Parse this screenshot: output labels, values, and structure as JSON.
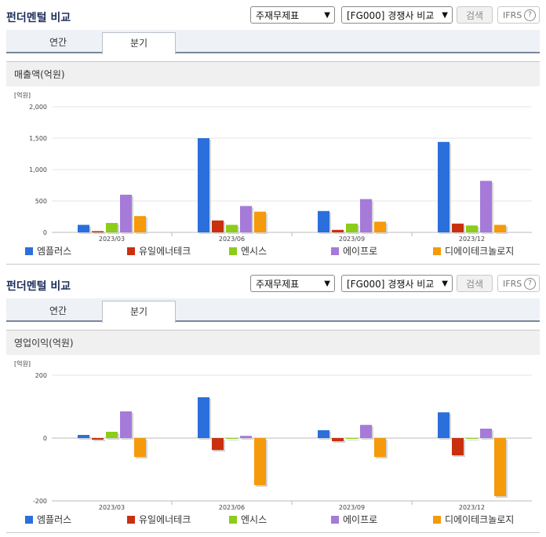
{
  "panels": [
    {
      "title": "펀더멘털 비교",
      "select_statement": "주재무제표",
      "select_compare": "[FG000] 경쟁사 비교",
      "search_label": "검색",
      "ifrs_label": "IFRS",
      "ifrs_help": "?",
      "tabs": [
        "연간",
        "분기"
      ],
      "section_title": "매출액(억원)"
    },
    {
      "title": "펀더멘털 비교",
      "select_statement": "주재무제표",
      "select_compare": "[FG000] 경쟁사 비교",
      "search_label": "검색",
      "ifrs_label": "IFRS",
      "ifrs_help": "?",
      "tabs": [
        "연간",
        "분기"
      ],
      "section_title": "영업이익(억원)"
    }
  ],
  "colors": {
    "엠플러스": "#2a6fdb",
    "유일에너테크": "#c9300f",
    "엔시스": "#8ccc1a",
    "에이프로": "#a57ad8",
    "디에이테크놀로지": "#f59a0a"
  },
  "chart_data": [
    {
      "type": "bar",
      "unit_label": "[억원]",
      "categories": [
        "2023/03",
        "2023/06",
        "2023/09",
        "2023/12"
      ],
      "yticks": [
        "0",
        "500",
        "1,000",
        "1,500",
        "2,000"
      ],
      "ylim": [
        0,
        2000
      ],
      "series": [
        {
          "name": "엠플러스",
          "values": [
            120,
            1500,
            340,
            1440
          ]
        },
        {
          "name": "유일에너테크",
          "values": [
            20,
            190,
            40,
            140
          ]
        },
        {
          "name": "엔시스",
          "values": [
            150,
            120,
            140,
            110
          ]
        },
        {
          "name": "에이프로",
          "values": [
            600,
            420,
            530,
            820
          ]
        },
        {
          "name": "디에이테크놀로지",
          "values": [
            260,
            330,
            170,
            120
          ]
        }
      ]
    },
    {
      "type": "bar",
      "unit_label": "[억원]",
      "categories": [
        "2023/03",
        "2023/06",
        "2023/09",
        "2023/12"
      ],
      "yticks": [
        "-200",
        "0",
        "200"
      ],
      "ylim": [
        -200,
        200
      ],
      "series": [
        {
          "name": "엠플러스",
          "values": [
            10,
            130,
            25,
            82
          ]
        },
        {
          "name": "유일에너테크",
          "values": [
            -5,
            -38,
            -10,
            -55
          ]
        },
        {
          "name": "엔시스",
          "values": [
            20,
            0,
            0,
            0
          ]
        },
        {
          "name": "에이프로",
          "values": [
            85,
            7,
            42,
            30
          ]
        },
        {
          "name": "디에이테크놀로지",
          "values": [
            -60,
            -150,
            -60,
            -185
          ]
        }
      ]
    }
  ]
}
